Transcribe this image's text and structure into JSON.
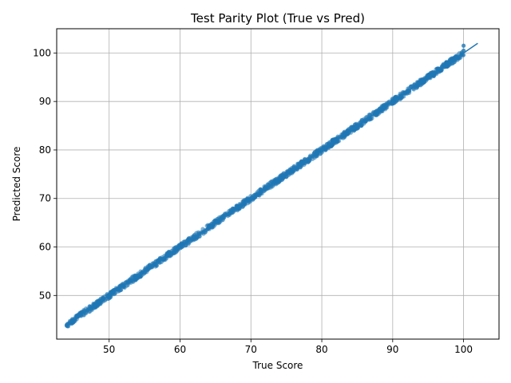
{
  "chart_data": {
    "type": "scatter",
    "title": "Test Parity Plot (True vs Pred)",
    "xlabel": "True Score",
    "ylabel": "Predicted Score",
    "xlim": [
      42.6,
      105.0
    ],
    "ylim": [
      41.0,
      105.0
    ],
    "xticks": [
      50,
      60,
      70,
      80,
      90,
      100
    ],
    "yticks": [
      50,
      60,
      70,
      80,
      90,
      100
    ],
    "grid": true,
    "point_color": "#1f77b4",
    "line_color": "#1f77b4",
    "reference_line": {
      "x": [
        44,
        102
      ],
      "y": [
        44,
        102
      ]
    },
    "point_range": {
      "x_min": 44,
      "x_max": 100
    },
    "point_spread": 0.6,
    "series": [
      {
        "values_sample": [
          [
            44,
            43.8
          ],
          [
            45,
            44.6
          ],
          [
            46,
            45.9
          ],
          [
            47,
            47.0
          ],
          [
            48,
            48.1
          ],
          [
            49,
            49.0
          ],
          [
            50,
            50.1
          ],
          [
            52,
            52.0
          ],
          [
            54,
            54.1
          ],
          [
            56,
            55.9
          ],
          [
            58,
            58.0
          ],
          [
            60,
            60.1
          ],
          [
            62,
            62.0
          ],
          [
            64,
            63.9
          ],
          [
            66,
            66.1
          ],
          [
            68,
            68.0
          ],
          [
            70,
            70.0
          ],
          [
            72,
            72.1
          ],
          [
            74,
            73.9
          ],
          [
            76,
            76.0
          ],
          [
            78,
            78.1
          ],
          [
            80,
            80.0
          ],
          [
            82,
            81.9
          ],
          [
            84,
            84.0
          ],
          [
            86,
            86.1
          ],
          [
            88,
            88.0
          ],
          [
            90,
            90.0
          ],
          [
            92,
            92.1
          ],
          [
            94,
            94.0
          ],
          [
            96,
            96.0
          ],
          [
            98,
            98.1
          ],
          [
            100,
            100.5
          ],
          [
            100,
            101.5
          ]
        ]
      }
    ]
  }
}
